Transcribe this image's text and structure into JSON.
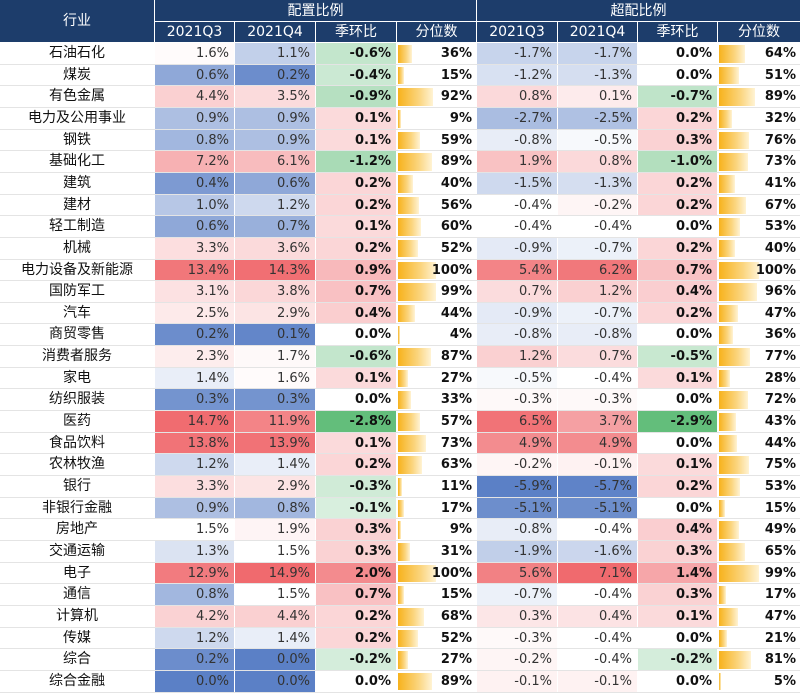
{
  "header": {
    "industry_label": "行业",
    "group_alloc": "配置比例",
    "group_over": "超配比例",
    "cols_alloc": [
      "2021Q3",
      "2021Q4",
      "季环比",
      "分位数"
    ],
    "cols_over": [
      "2021Q3",
      "2021Q4",
      "季环比",
      "分位数"
    ]
  },
  "rows": [
    {
      "name": "石油石化",
      "a_q3": "1.6%",
      "a_q4": "1.1%",
      "a_chg": "-0.6%",
      "a_pct": "36%",
      "o_q3": "-1.7%",
      "o_q4": "-1.7%",
      "o_chg": "0.0%",
      "o_pct": "64%"
    },
    {
      "name": "煤炭",
      "a_q3": "0.6%",
      "a_q4": "0.2%",
      "a_chg": "-0.4%",
      "a_pct": "15%",
      "o_q3": "-1.2%",
      "o_q4": "-1.3%",
      "o_chg": "0.0%",
      "o_pct": "51%"
    },
    {
      "name": "有色金属",
      "a_q3": "4.4%",
      "a_q4": "3.5%",
      "a_chg": "-0.9%",
      "a_pct": "92%",
      "o_q3": "0.8%",
      "o_q4": "0.1%",
      "o_chg": "-0.7%",
      "o_pct": "89%"
    },
    {
      "name": "电力及公用事业",
      "a_q3": "0.9%",
      "a_q4": "0.9%",
      "a_chg": "0.1%",
      "a_pct": "9%",
      "o_q3": "-2.7%",
      "o_q4": "-2.5%",
      "o_chg": "0.2%",
      "o_pct": "32%"
    },
    {
      "name": "钢铁",
      "a_q3": "0.8%",
      "a_q4": "0.9%",
      "a_chg": "0.1%",
      "a_pct": "59%",
      "o_q3": "-0.8%",
      "o_q4": "-0.5%",
      "o_chg": "0.3%",
      "o_pct": "76%"
    },
    {
      "name": "基础化工",
      "a_q3": "7.2%",
      "a_q4": "6.1%",
      "a_chg": "-1.2%",
      "a_pct": "89%",
      "o_q3": "1.9%",
      "o_q4": "0.8%",
      "o_chg": "-1.0%",
      "o_pct": "73%"
    },
    {
      "name": "建筑",
      "a_q3": "0.4%",
      "a_q4": "0.6%",
      "a_chg": "0.2%",
      "a_pct": "40%",
      "o_q3": "-1.5%",
      "o_q4": "-1.3%",
      "o_chg": "0.2%",
      "o_pct": "41%"
    },
    {
      "name": "建材",
      "a_q3": "1.0%",
      "a_q4": "1.2%",
      "a_chg": "0.2%",
      "a_pct": "56%",
      "o_q3": "-0.4%",
      "o_q4": "-0.2%",
      "o_chg": "0.2%",
      "o_pct": "67%"
    },
    {
      "name": "轻工制造",
      "a_q3": "0.6%",
      "a_q4": "0.7%",
      "a_chg": "0.1%",
      "a_pct": "60%",
      "o_q3": "-0.4%",
      "o_q4": "-0.4%",
      "o_chg": "0.0%",
      "o_pct": "53%"
    },
    {
      "name": "机械",
      "a_q3": "3.3%",
      "a_q4": "3.6%",
      "a_chg": "0.2%",
      "a_pct": "52%",
      "o_q3": "-0.9%",
      "o_q4": "-0.7%",
      "o_chg": "0.2%",
      "o_pct": "40%"
    },
    {
      "name": "电力设备及新能源",
      "a_q3": "13.4%",
      "a_q4": "14.3%",
      "a_chg": "0.9%",
      "a_pct": "100%",
      "o_q3": "5.4%",
      "o_q4": "6.2%",
      "o_chg": "0.7%",
      "o_pct": "100%"
    },
    {
      "name": "国防军工",
      "a_q3": "3.1%",
      "a_q4": "3.8%",
      "a_chg": "0.7%",
      "a_pct": "99%",
      "o_q3": "0.7%",
      "o_q4": "1.2%",
      "o_chg": "0.4%",
      "o_pct": "96%"
    },
    {
      "name": "汽车",
      "a_q3": "2.5%",
      "a_q4": "2.9%",
      "a_chg": "0.4%",
      "a_pct": "44%",
      "o_q3": "-0.9%",
      "o_q4": "-0.7%",
      "o_chg": "0.2%",
      "o_pct": "47%"
    },
    {
      "name": "商贸零售",
      "a_q3": "0.2%",
      "a_q4": "0.1%",
      "a_chg": "0.0%",
      "a_pct": "4%",
      "o_q3": "-0.8%",
      "o_q4": "-0.8%",
      "o_chg": "0.0%",
      "o_pct": "36%"
    },
    {
      "name": "消费者服务",
      "a_q3": "2.3%",
      "a_q4": "1.7%",
      "a_chg": "-0.6%",
      "a_pct": "87%",
      "o_q3": "1.2%",
      "o_q4": "0.7%",
      "o_chg": "-0.5%",
      "o_pct": "77%"
    },
    {
      "name": "家电",
      "a_q3": "1.4%",
      "a_q4": "1.6%",
      "a_chg": "0.1%",
      "a_pct": "27%",
      "o_q3": "-0.5%",
      "o_q4": "-0.4%",
      "o_chg": "0.1%",
      "o_pct": "28%"
    },
    {
      "name": "纺织服装",
      "a_q3": "0.3%",
      "a_q4": "0.3%",
      "a_chg": "0.0%",
      "a_pct": "33%",
      "o_q3": "-0.3%",
      "o_q4": "-0.3%",
      "o_chg": "0.0%",
      "o_pct": "72%"
    },
    {
      "name": "医药",
      "a_q3": "14.7%",
      "a_q4": "11.9%",
      "a_chg": "-2.8%",
      "a_pct": "57%",
      "o_q3": "6.5%",
      "o_q4": "3.7%",
      "o_chg": "-2.9%",
      "o_pct": "43%"
    },
    {
      "name": "食品饮料",
      "a_q3": "13.8%",
      "a_q4": "13.9%",
      "a_chg": "0.1%",
      "a_pct": "73%",
      "o_q3": "4.9%",
      "o_q4": "4.9%",
      "o_chg": "0.0%",
      "o_pct": "44%"
    },
    {
      "name": "农林牧渔",
      "a_q3": "1.2%",
      "a_q4": "1.4%",
      "a_chg": "0.2%",
      "a_pct": "63%",
      "o_q3": "-0.2%",
      "o_q4": "-0.1%",
      "o_chg": "0.1%",
      "o_pct": "75%"
    },
    {
      "name": "银行",
      "a_q3": "3.3%",
      "a_q4": "2.9%",
      "a_chg": "-0.3%",
      "a_pct": "11%",
      "o_q3": "-5.9%",
      "o_q4": "-5.7%",
      "o_chg": "0.2%",
      "o_pct": "53%"
    },
    {
      "name": "非银行金融",
      "a_q3": "0.9%",
      "a_q4": "0.8%",
      "a_chg": "-0.1%",
      "a_pct": "17%",
      "o_q3": "-5.1%",
      "o_q4": "-5.1%",
      "o_chg": "0.0%",
      "o_pct": "15%"
    },
    {
      "name": "房地产",
      "a_q3": "1.5%",
      "a_q4": "1.9%",
      "a_chg": "0.3%",
      "a_pct": "9%",
      "o_q3": "-0.8%",
      "o_q4": "-0.4%",
      "o_chg": "0.4%",
      "o_pct": "49%"
    },
    {
      "name": "交通运输",
      "a_q3": "1.3%",
      "a_q4": "1.5%",
      "a_chg": "0.3%",
      "a_pct": "31%",
      "o_q3": "-1.9%",
      "o_q4": "-1.6%",
      "o_chg": "0.3%",
      "o_pct": "65%"
    },
    {
      "name": "电子",
      "a_q3": "12.9%",
      "a_q4": "14.9%",
      "a_chg": "2.0%",
      "a_pct": "100%",
      "o_q3": "5.6%",
      "o_q4": "7.1%",
      "o_chg": "1.4%",
      "o_pct": "99%"
    },
    {
      "name": "通信",
      "a_q3": "0.8%",
      "a_q4": "1.5%",
      "a_chg": "0.7%",
      "a_pct": "15%",
      "o_q3": "-0.7%",
      "o_q4": "-0.4%",
      "o_chg": "0.3%",
      "o_pct": "17%"
    },
    {
      "name": "计算机",
      "a_q3": "4.2%",
      "a_q4": "4.4%",
      "a_chg": "0.2%",
      "a_pct": "68%",
      "o_q3": "0.3%",
      "o_q4": "0.4%",
      "o_chg": "0.1%",
      "o_pct": "47%"
    },
    {
      "name": "传媒",
      "a_q3": "1.2%",
      "a_q4": "1.4%",
      "a_chg": "0.2%",
      "a_pct": "52%",
      "o_q3": "-0.3%",
      "o_q4": "-0.4%",
      "o_chg": "0.0%",
      "o_pct": "21%"
    },
    {
      "name": "综合",
      "a_q3": "0.2%",
      "a_q4": "0.0%",
      "a_chg": "-0.2%",
      "a_pct": "27%",
      "o_q3": "-0.2%",
      "o_q4": "-0.4%",
      "o_chg": "-0.2%",
      "o_pct": "81%"
    },
    {
      "name": "综合金融",
      "a_q3": "0.0%",
      "a_q4": "0.0%",
      "a_chg": "0.0%",
      "a_pct": "89%",
      "o_q3": "-0.1%",
      "o_q4": "-0.1%",
      "o_chg": "0.0%",
      "o_pct": "5%"
    }
  ],
  "colors": {
    "header_bg": "#1d3d6b",
    "heat_high": "#f06a6e",
    "heat_low": "#5b80c6",
    "change_up": "#f06a6e",
    "change_down": "#63be7b",
    "percentile_bar": "#f7b21c"
  }
}
